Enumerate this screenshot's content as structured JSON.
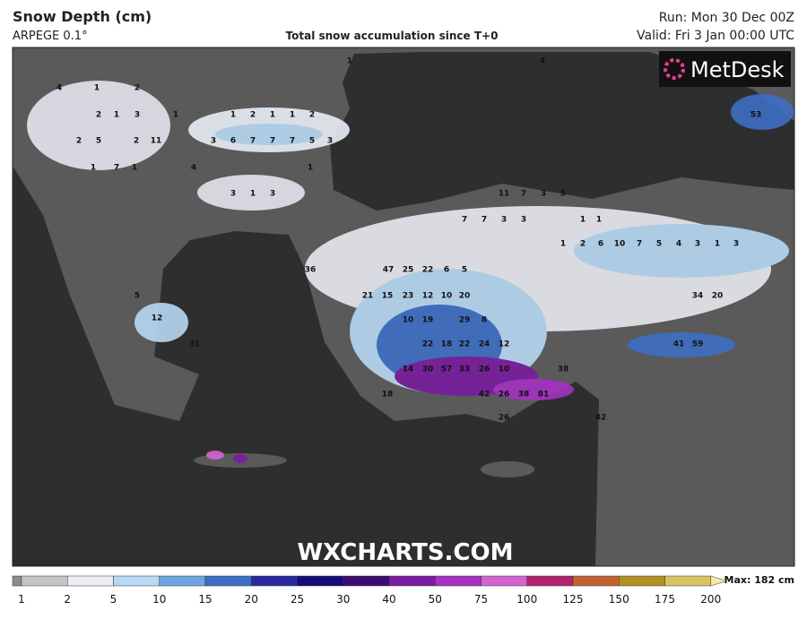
{
  "header": {
    "title": "Snow Depth (cm)",
    "model": "ARPEGE 0.1°",
    "subtitle": "Total snow accumulation since T+0",
    "run": "Run: Mon 30 Dec 00Z",
    "valid": "Valid: Fri 3 Jan 00:00 UTC"
  },
  "logo": "MetDesk",
  "watermark": "WXCHARTS.COM",
  "colorbar": {
    "ticks": [
      1,
      2,
      5,
      10,
      15,
      20,
      25,
      30,
      40,
      50,
      75,
      100,
      125,
      150,
      175,
      200
    ],
    "colors": [
      "#8c8c8c",
      "#c4c4c4",
      "#ececf2",
      "#b8d8f4",
      "#6ca6dc",
      "#3e6ec4",
      "#2a2a9e",
      "#160c78",
      "#3c0c70",
      "#7a1c9e",
      "#a432c2",
      "#d264d2",
      "#b2226c",
      "#c26232",
      "#b09224",
      "#d8c262",
      "#f6e8a4"
    ],
    "max": "Max: 182 cm"
  },
  "map_labels": [
    "4",
    "1",
    "2",
    "2",
    "1",
    "3",
    "1",
    "2",
    "5",
    "2",
    "11",
    "1",
    "7",
    "1",
    "4",
    "1",
    "2",
    "1",
    "1",
    "2",
    "3",
    "6",
    "7",
    "7",
    "7",
    "5",
    "3",
    "1",
    "3",
    "1",
    "3",
    "1",
    "4",
    "11",
    "7",
    "3",
    "5",
    "7",
    "7",
    "3",
    "3",
    "1",
    "1",
    "36",
    "47",
    "25",
    "22",
    "6",
    "5",
    "21",
    "15",
    "23",
    "12",
    "10",
    "20",
    "5",
    "12",
    "31",
    "10",
    "19",
    "29",
    "8",
    "22",
    "18",
    "22",
    "24",
    "12",
    "14",
    "30",
    "57",
    "33",
    "26",
    "10",
    "38",
    "18",
    "42",
    "26",
    "38",
    "81",
    "26",
    "42",
    "34",
    "20",
    "41",
    "59",
    "53",
    "1",
    "2",
    "6",
    "10",
    "7",
    "5",
    "4",
    "3",
    "1",
    "3"
  ]
}
